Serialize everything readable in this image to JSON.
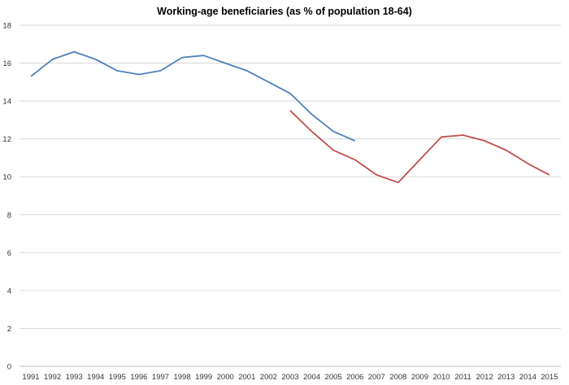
{
  "chart_data": {
    "type": "line",
    "title": "Working-age beneficiaries (as % of population 18-64)",
    "xlabel": "",
    "ylabel": "",
    "ylim": [
      0,
      18
    ],
    "yticks": [
      0,
      2,
      4,
      6,
      8,
      10,
      12,
      14,
      16,
      18
    ],
    "grid": true,
    "legend": "none",
    "x": [
      "1991",
      "1992",
      "1993",
      "1994",
      "1995",
      "1996",
      "1997",
      "1998",
      "1999",
      "2000",
      "2001",
      "2002",
      "2003",
      "2004",
      "2005",
      "2006",
      "2007",
      "2008",
      "2009",
      "2010",
      "2011",
      "2012",
      "2013",
      "2014",
      "2015"
    ],
    "series": [
      {
        "color": "#4f81bd",
        "values": [
          15.3,
          16.2,
          16.6,
          16.2,
          15.6,
          15.4,
          15.6,
          16.3,
          16.4,
          16.0,
          15.6,
          15.0,
          14.4,
          13.3,
          12.4,
          11.9,
          null,
          null,
          null,
          null,
          null,
          null,
          null,
          null,
          null
        ]
      },
      {
        "color": "#c0504d",
        "values": [
          null,
          null,
          null,
          null,
          null,
          null,
          null,
          null,
          null,
          null,
          null,
          null,
          13.5,
          12.4,
          11.4,
          10.9,
          10.1,
          9.7,
          10.9,
          12.1,
          12.2,
          11.9,
          11.4,
          10.7,
          10.1
        ]
      }
    ]
  }
}
